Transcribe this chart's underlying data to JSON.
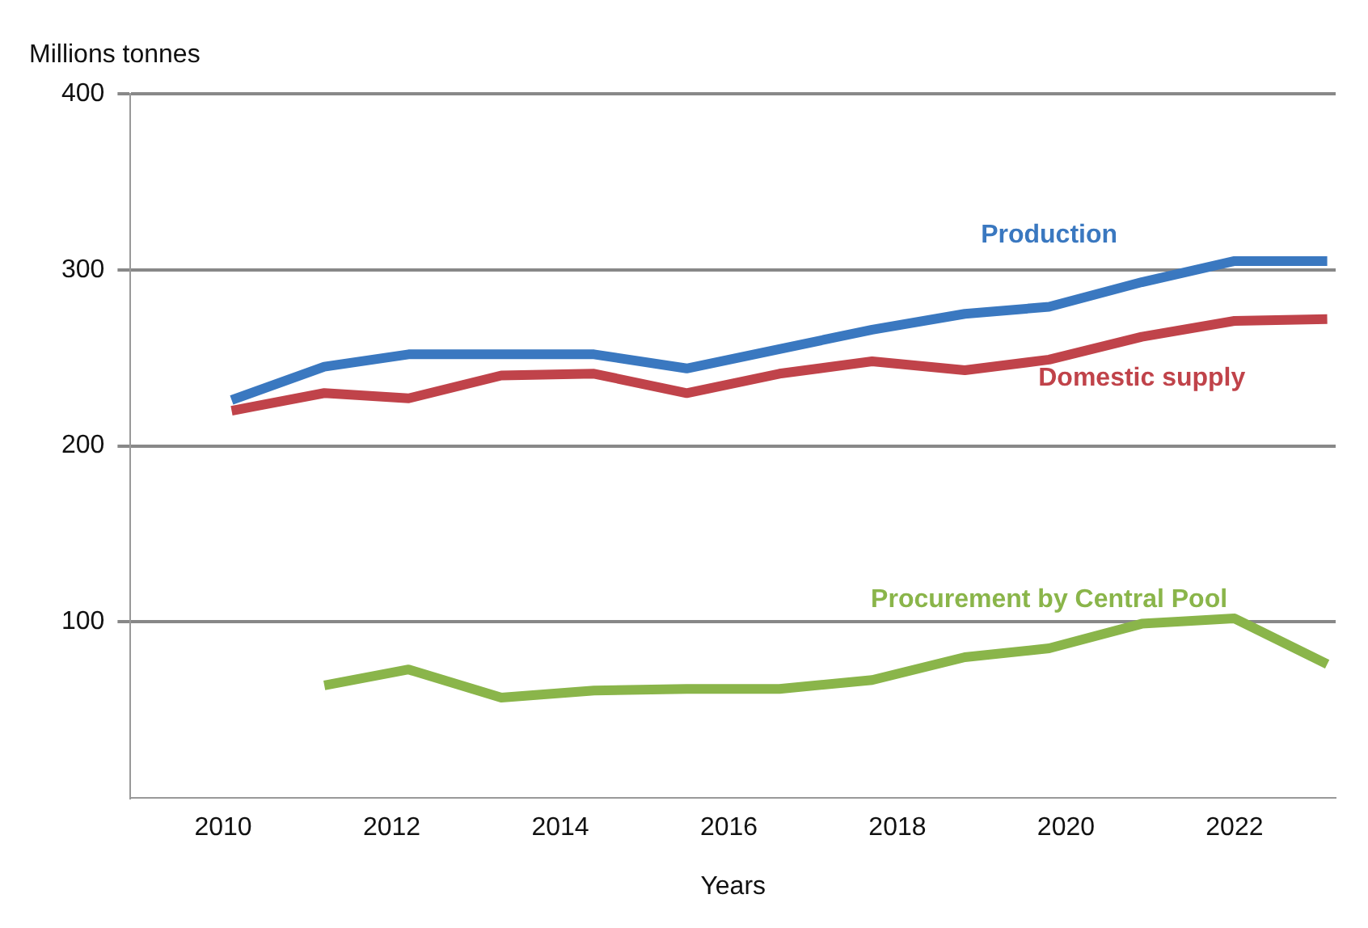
{
  "chart_data": {
    "type": "line",
    "ylabel": "Millions tonnes",
    "xlabel": "Years",
    "x": [
      2010.1,
      2011.2,
      2012.2,
      2013.3,
      2014.4,
      2015.5,
      2016.6,
      2017.7,
      2018.8,
      2019.8,
      2020.9,
      2022.0,
      2023.1
    ],
    "xlim": [
      2008.9,
      2023.2
    ],
    "xticks": [
      2010,
      2012,
      2014,
      2016,
      2018,
      2020,
      2022
    ],
    "ylim": [
      0,
      400
    ],
    "yticks": [
      {
        "value": 0,
        "label": null
      },
      100,
      200,
      300,
      400
    ],
    "grid": "y",
    "legend": false,
    "marker": "none",
    "line_style": "solid",
    "series": [
      {
        "name": "Production",
        "color": "#3a78c0",
        "values": [
          226,
          245,
          252,
          252,
          252,
          244,
          255,
          266,
          275,
          279,
          293,
          305,
          305
        ]
      },
      {
        "name": "Domestic supply",
        "color": "#c0434a",
        "values": [
          220,
          230,
          227,
          240,
          241,
          230,
          241,
          248,
          243,
          249,
          262,
          271,
          272
        ]
      },
      {
        "name": "Procurement by Central Pool",
        "color": "#8ab54a",
        "values": [
          null,
          64,
          73,
          57,
          61,
          62,
          62,
          67,
          80,
          85,
          99,
          102,
          76
        ]
      }
    ]
  }
}
